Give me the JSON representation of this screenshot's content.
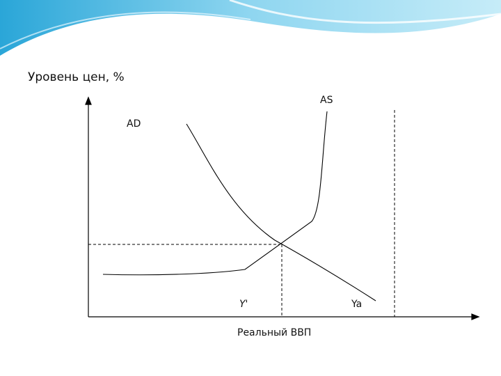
{
  "axes": {
    "y_label": "Уровень цен, %",
    "x_label": "Реальный ВВП"
  },
  "curves": {
    "as": "AS",
    "ad": "AD"
  },
  "points": {
    "y_prime": "Y'",
    "y_a": "Ya"
  }
}
